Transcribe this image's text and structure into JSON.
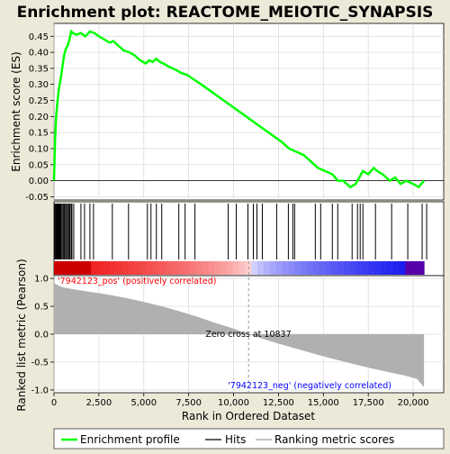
{
  "chart_data": [
    {
      "panel": "enrichment",
      "type": "line",
      "title": "Enrichment plot: REACTOME_MEIOTIC_SYNAPSIS",
      "ylabel": "Enrichment score (ES)",
      "ylim": [
        -0.06,
        0.49
      ],
      "xlim": [
        0,
        21700
      ],
      "yticks": [
        -0.05,
        0.0,
        0.05,
        0.1,
        0.15,
        0.2,
        0.25,
        0.3,
        0.35,
        0.4,
        0.45
      ],
      "ytick_labels": [
        "-0.05",
        "0.00",
        "0.05",
        "0.10",
        "0.15",
        "0.20",
        "0.25",
        "0.30",
        "0.35",
        "0.40",
        "0.45"
      ],
      "grid": true,
      "color": "#00ff00",
      "series": [
        {
          "x": [
            0,
            60,
            120,
            200,
            280,
            380,
            480,
            560,
            650,
            760,
            860,
            960,
            1050,
            1250,
            1500,
            1750,
            2000,
            2250,
            2500,
            2800,
            3100,
            3300,
            3600,
            3900,
            4200,
            4500,
            4800,
            5100,
            5300,
            5500,
            5700,
            5900,
            6100,
            6400,
            6800,
            7100,
            7400,
            7800,
            8200,
            8700,
            9200,
            9700,
            10200,
            10700,
            11200,
            11700,
            12200,
            12700,
            13100,
            13500,
            13900,
            14300,
            14700,
            15100,
            15500,
            15800,
            16100,
            16500,
            16800,
            17000,
            17200,
            17500,
            17800,
            18000,
            18300,
            18700,
            19000,
            19300,
            19600,
            20000,
            20300,
            20600
          ],
          "y": [
            0.0,
            0.13,
            0.2,
            0.25,
            0.29,
            0.32,
            0.36,
            0.39,
            0.41,
            0.42,
            0.44,
            0.465,
            0.46,
            0.455,
            0.46,
            0.45,
            0.465,
            0.46,
            0.45,
            0.44,
            0.43,
            0.435,
            0.42,
            0.405,
            0.4,
            0.39,
            0.375,
            0.365,
            0.375,
            0.37,
            0.38,
            0.37,
            0.365,
            0.355,
            0.345,
            0.335,
            0.33,
            0.315,
            0.3,
            0.28,
            0.26,
            0.24,
            0.22,
            0.2,
            0.18,
            0.16,
            0.14,
            0.12,
            0.1,
            0.09,
            0.08,
            0.06,
            0.04,
            0.03,
            0.02,
            0.0,
            0.0,
            -0.02,
            -0.01,
            0.01,
            0.03,
            0.02,
            0.04,
            0.03,
            0.02,
            0.0,
            0.01,
            -0.01,
            0.0,
            -0.01,
            -0.02,
            0.0
          ]
        }
      ]
    },
    {
      "panel": "hits",
      "type": "scatter",
      "xlim": [
        0,
        21700
      ],
      "hits": [
        40,
        80,
        120,
        160,
        200,
        250,
        300,
        350,
        400,
        460,
        520,
        580,
        640,
        700,
        760,
        820,
        880,
        950,
        1000,
        1100,
        1500,
        1700,
        2000,
        2200,
        3250,
        4150,
        5200,
        5400,
        5700,
        6000,
        6950,
        7300,
        7850,
        9700,
        10150,
        10800,
        11100,
        11300,
        11600,
        12400,
        13050,
        13300,
        13400,
        14550,
        14850,
        15500,
        15800,
        16600,
        16900,
        17050,
        17200,
        17900,
        18800,
        19700,
        20500,
        20750
      ]
    },
    {
      "panel": "ranking",
      "type": "area",
      "ylabel": "Ranked list metric (Pearson)",
      "xlabel": "Rank in Ordered Dataset",
      "ylim": [
        -1.05,
        1.05
      ],
      "xlim": [
        0,
        21700
      ],
      "xticks": [
        0,
        2500,
        5000,
        7500,
        10000,
        12500,
        15000,
        17500,
        20000
      ],
      "xtick_labels": [
        "0",
        "2,500",
        "5,000",
        "7,500",
        "10,000",
        "12,500",
        "15,000",
        "17,500",
        "20,000"
      ],
      "yticks": [
        -1.0,
        -0.5,
        0.0,
        0.5,
        1.0
      ],
      "ytick_labels": [
        "-1.0",
        "-0.5",
        "0.0",
        "0.5",
        "1.0"
      ],
      "grid": true,
      "color": "#b0b0b0",
      "series": [
        {
          "x": [
            0,
            200,
            500,
            1000,
            2000,
            3000,
            4000,
            5000,
            6000,
            7000,
            8000,
            9000,
            10000,
            10837,
            11500,
            12500,
            13500,
            14500,
            15500,
            16500,
            17500,
            18500,
            19500,
            20200,
            20600
          ],
          "y": [
            0.92,
            0.88,
            0.84,
            0.81,
            0.76,
            0.71,
            0.65,
            0.58,
            0.5,
            0.41,
            0.31,
            0.2,
            0.1,
            0.0,
            -0.07,
            -0.17,
            -0.26,
            -0.35,
            -0.44,
            -0.52,
            -0.6,
            -0.67,
            -0.74,
            -0.8,
            -0.95
          ]
        }
      ],
      "annotations": {
        "zero_cross_text": "Zero cross at 10837",
        "zero_cross_x": 10837,
        "pos_label": "'7942123_pos' (positively correlated)",
        "neg_label": "'7942123_neg' (negatively correlated)",
        "pos_color": "#ff0000",
        "neg_color": "#0000ff"
      }
    }
  ],
  "legend": {
    "placement": "bottom",
    "items": [
      {
        "label": "Enrichment profile",
        "color": "#00ff00"
      },
      {
        "label": "Hits",
        "color": "#000000"
      },
      {
        "label": "Ranking metric scores",
        "color": "#b0b0b0"
      }
    ]
  }
}
